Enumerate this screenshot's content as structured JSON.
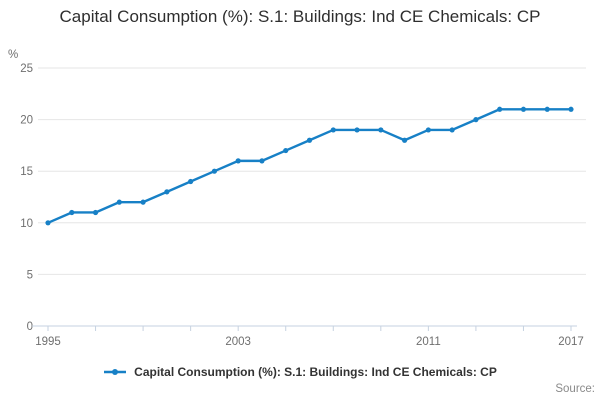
{
  "title": "Capital Consumption (%): S.1: Buildings: Ind CE Chemicals: CP",
  "y_axis_unit_label": "%",
  "source_label": "Source:",
  "legend": {
    "label": "Capital Consumption (%): S.1: Buildings: Ind CE Chemicals: CP"
  },
  "colors": {
    "series": "#1780c6",
    "grid": "#e6e6e6",
    "axis": "#c6d2e0",
    "tick_text": "#6f6f6f",
    "title_text": "#2e2e2e",
    "legend_text": "#333333",
    "source_text": "#8a8a8a"
  },
  "chart_data": {
    "type": "line",
    "title": "Capital Consumption (%): S.1: Buildings: Ind CE Chemicals: CP",
    "xlabel": "",
    "ylabel": "%",
    "x": [
      1995,
      1996,
      1997,
      1998,
      1999,
      2000,
      2001,
      2002,
      2003,
      2004,
      2005,
      2006,
      2007,
      2008,
      2009,
      2010,
      2011,
      2012,
      2013,
      2014,
      2015,
      2016,
      2017
    ],
    "series": [
      {
        "name": "Capital Consumption (%): S.1: Buildings: Ind CE Chemicals: CP",
        "values": [
          10,
          11,
          11,
          12,
          12,
          13,
          14,
          15,
          16,
          16,
          17,
          18,
          19,
          19,
          19,
          18,
          19,
          19,
          20,
          21,
          21,
          21,
          21
        ]
      }
    ],
    "ylim": [
      0,
      25
    ],
    "y_ticks": [
      0,
      5,
      10,
      15,
      20,
      25
    ],
    "x_tick_labels": [
      1995,
      2003,
      2011,
      2017
    ],
    "x_minor_tick_step": 2,
    "grid": "horizontal",
    "legend_position": "bottom",
    "markers": true
  }
}
